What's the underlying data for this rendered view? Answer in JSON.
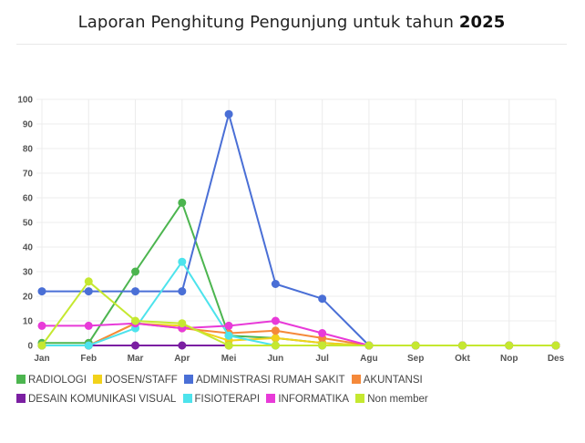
{
  "page": {
    "title_prefix": "Laporan Penghitung Pengunjung untuk tahun",
    "title_year": "2025"
  },
  "chart_data": {
    "type": "line",
    "categories": [
      "Jan",
      "Feb",
      "Mar",
      "Apr",
      "Mei",
      "Jun",
      "Jul",
      "Agu",
      "Sep",
      "Okt",
      "Nop",
      "Des"
    ],
    "ylim": [
      0,
      100
    ],
    "yticks": [
      0,
      10,
      20,
      30,
      40,
      50,
      60,
      70,
      80,
      90,
      100
    ],
    "grid": true,
    "legend_position": "bottom",
    "series": [
      {
        "name": "RADIOLOGI",
        "color": "#4cb54f",
        "values": [
          1,
          1,
          30,
          58,
          4,
          3,
          1,
          0,
          0,
          0,
          0,
          0
        ]
      },
      {
        "name": "DOSEN/STAFF",
        "color": "#f2d21b",
        "values": [
          0,
          0,
          9,
          8,
          2,
          3,
          1,
          0,
          0,
          0,
          0,
          0
        ]
      },
      {
        "name": "ADMINISTRASI RUMAH SAKIT",
        "color": "#4a6fd6",
        "values": [
          22,
          22,
          22,
          22,
          94,
          25,
          19,
          0,
          0,
          0,
          0,
          0
        ]
      },
      {
        "name": "AKUNTANSI",
        "color": "#f5893a",
        "values": [
          0,
          0,
          9,
          7,
          5,
          6,
          3,
          0,
          0,
          0,
          0,
          0
        ]
      },
      {
        "name": "DESAIN KOMUNIKASI VISUAL",
        "color": "#7b1fa2",
        "values": [
          0,
          0,
          0,
          0,
          0,
          0,
          0,
          0,
          0,
          0,
          0,
          0
        ]
      },
      {
        "name": "FISIOTERAPI",
        "color": "#4de3ec",
        "values": [
          0,
          0,
          7,
          34,
          4,
          0,
          0,
          0,
          0,
          0,
          0,
          0
        ]
      },
      {
        "name": "INFORMATIKA",
        "color": "#e83ad8",
        "values": [
          8,
          8,
          9,
          7,
          8,
          10,
          5,
          0,
          0,
          0,
          0,
          0
        ]
      },
      {
        "name": "Non member",
        "color": "#c5e830",
        "values": [
          0,
          26,
          10,
          9,
          0,
          0,
          0,
          0,
          0,
          0,
          0,
          0
        ]
      }
    ]
  }
}
